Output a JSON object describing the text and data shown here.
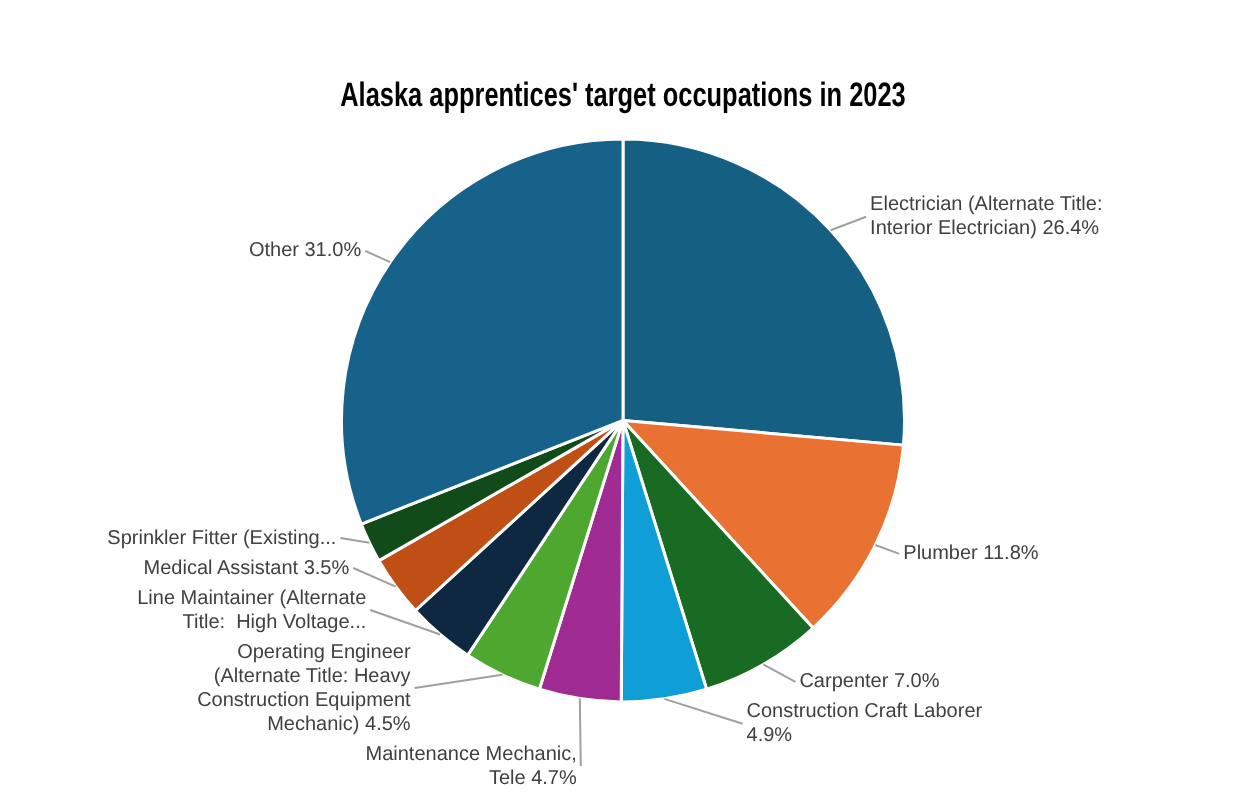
{
  "chart_data": {
    "type": "pie",
    "title": "Alaska apprentices' target occupations in 2023",
    "categories": [
      "Electrician (Alternate Title: Interior Electrician)",
      "Plumber",
      "Carpenter",
      "Construction Craft Laborer",
      "Maintenance Mechanic, Tele",
      "Operating Engineer  (Alternate Title: Heavy Construction Equipment Mechanic)",
      "Line Maintainer (Alternate Title:  High Voltage...",
      "Medical Assistant",
      "Sprinkler Fitter (Existing...",
      "Other"
    ],
    "values": [
      26.4,
      11.8,
      7.0,
      4.9,
      4.7,
      4.5,
      3.9,
      3.5,
      2.3,
      31.0
    ],
    "value_labels": [
      "26.4%",
      "11.8%",
      "7.0%",
      "4.9%",
      "4.7%",
      "4.5%",
      null,
      "3.5%",
      null,
      "31.0%"
    ],
    "colors": [
      "#156082",
      "#e97132",
      "#196b24",
      "#0f9ed5",
      "#a02b93",
      "#4ea72e",
      "#0e2841",
      "#c04f15",
      "#124b1a",
      "#17628a"
    ],
    "legend": false
  }
}
